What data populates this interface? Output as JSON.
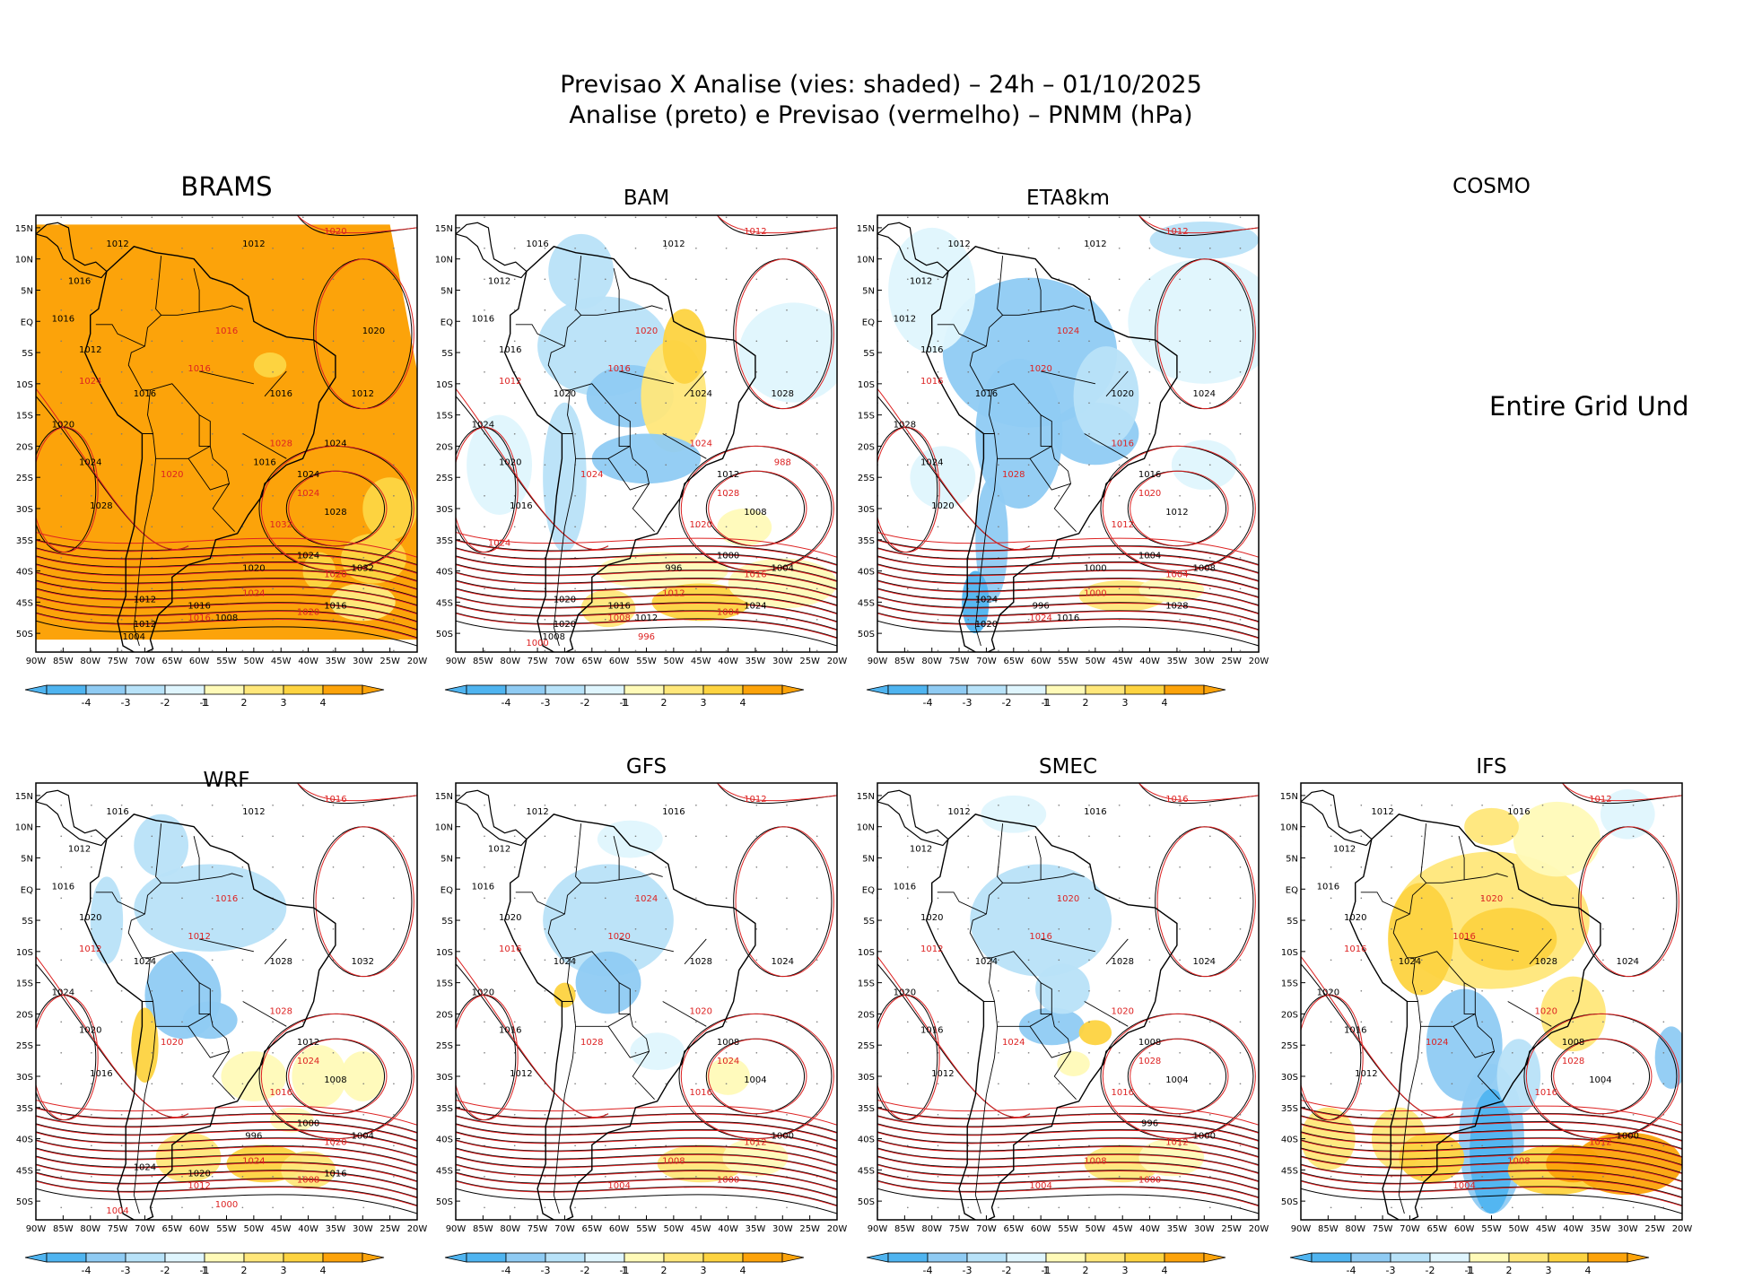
{
  "title": {
    "line1": "Previsao X Analise (vies: shaded) – 24h – 01/10/2025",
    "line2": "Analise (preto) e Previsao (vermelho) – PNMM (hPa)"
  },
  "colors": {
    "neg4": "#4fb4f0",
    "neg3": "#8fcbf3",
    "neg2": "#b8e2f8",
    "neg1": "#dff5fd",
    "pos1": "#fffab8",
    "pos2": "#ffe77a",
    "pos3": "#fdd340",
    "pos4": "#fca30a",
    "analysis_line": "#000000",
    "forecast_line": "#dd2222",
    "coast": "#000000"
  },
  "chart_data": [
    {
      "model": "BRAMS",
      "type": "heatmap",
      "dominant_bias": "pos4",
      "analysis_labels": [
        "1012",
        "1012",
        "1016",
        "1016",
        "1012",
        "1016",
        "1016",
        "1012",
        "1020",
        "1024",
        "1028",
        "1024",
        "1028",
        "1032",
        "1024",
        "1020",
        "1016",
        "1012",
        "1016",
        "1012",
        "1008",
        "1004",
        "1016",
        "1024",
        "1020"
      ],
      "forecast_labels": [
        "1020",
        "1024",
        "1016",
        "1016",
        "1020",
        "1024",
        "1028",
        "1032",
        "1020",
        "1024",
        "1016",
        "1020"
      ],
      "lon_ticks": [
        "90W",
        "85W",
        "80W",
        "75W",
        "70W",
        "65W",
        "60W",
        "55W",
        "50W",
        "45W",
        "40W",
        "35W",
        "30W",
        "25W",
        "20W"
      ],
      "lat_ticks": [
        "15N",
        "10N",
        "5N",
        "EQ",
        "5S",
        "10S",
        "15S",
        "20S",
        "25S",
        "30S",
        "35S",
        "40S",
        "45S",
        "50S"
      ],
      "colorbar_ticks": [
        "-4",
        "-3",
        "-2",
        "-1",
        "1",
        "2",
        "3",
        "4"
      ]
    },
    {
      "model": "BAM",
      "type": "heatmap",
      "dominant_bias": "mixed",
      "analysis_labels": [
        "1016",
        "1012",
        "1012",
        "1016",
        "1016",
        "1020",
        "1024",
        "1028",
        "1024",
        "1020",
        "1016",
        "1012",
        "1008",
        "1004",
        "1000",
        "996",
        "1016",
        "1020",
        "1024",
        "1020",
        "1012",
        "1008"
      ],
      "forecast_labels": [
        "1012",
        "1012",
        "1016",
        "1020",
        "1024",
        "1028",
        "1024",
        "1020",
        "1016",
        "1012",
        "1008",
        "1004",
        "1000",
        "996",
        "988",
        "1024"
      ],
      "lon_ticks": [
        "90W",
        "85W",
        "80W",
        "75W",
        "70W",
        "65W",
        "60W",
        "55W",
        "50W",
        "45W",
        "40W",
        "35W",
        "30W",
        "25W",
        "20W"
      ],
      "lat_ticks": [
        "15N",
        "10N",
        "5N",
        "EQ",
        "5S",
        "10S",
        "15S",
        "20S",
        "25S",
        "30S",
        "35S",
        "40S",
        "45S",
        "50S"
      ],
      "colorbar_ticks": [
        "-4",
        "-3",
        "-2",
        "-1",
        "1",
        "2",
        "3",
        "4"
      ]
    },
    {
      "model": "ETA8km",
      "type": "heatmap",
      "dominant_bias": "neg",
      "analysis_labels": [
        "1012",
        "1012",
        "1012",
        "1012",
        "1016",
        "1016",
        "1020",
        "1024",
        "1028",
        "1024",
        "1020",
        "1016",
        "1012",
        "1008",
        "1004",
        "1000",
        "996",
        "1024",
        "1028",
        "1020",
        "1016"
      ],
      "forecast_labels": [
        "1012",
        "1016",
        "1020",
        "1024",
        "1028",
        "1020",
        "1016",
        "1012",
        "1004",
        "1000",
        "1024"
      ],
      "lon_ticks": [
        "90W",
        "85W",
        "80W",
        "75W",
        "70W",
        "65W",
        "60W",
        "55W",
        "50W",
        "45W",
        "40W",
        "35W",
        "30W",
        "25W",
        "20W"
      ],
      "lat_ticks": [
        "15N",
        "10N",
        "5N",
        "EQ",
        "5S",
        "10S",
        "15S",
        "20S",
        "25S",
        "30S",
        "35S",
        "40S",
        "45S",
        "50S"
      ],
      "colorbar_ticks": [
        "-4",
        "-3",
        "-2",
        "-1",
        "1",
        "2",
        "3",
        "4"
      ]
    },
    {
      "model": "COSMO",
      "type": "heatmap",
      "message": "Entire Grid Und"
    },
    {
      "model": "WRF",
      "type": "heatmap",
      "dominant_bias": "mixed",
      "analysis_labels": [
        "1016",
        "1012",
        "1012",
        "1016",
        "1020",
        "1024",
        "1028",
        "1032",
        "1024",
        "1020",
        "1016",
        "1012",
        "1008",
        "1004",
        "1000",
        "996",
        "1020",
        "1024",
        "1016"
      ],
      "forecast_labels": [
        "1016",
        "1012",
        "1012",
        "1016",
        "1020",
        "1024",
        "1028",
        "1016",
        "1020",
        "1024",
        "1012",
        "1008",
        "1004",
        "1000"
      ],
      "lon_ticks": [
        "90W",
        "85W",
        "80W",
        "75W",
        "70W",
        "65W",
        "60W",
        "55W",
        "50W",
        "45W",
        "40W",
        "35W",
        "30W",
        "25W",
        "20W"
      ],
      "lat_ticks": [
        "15N",
        "10N",
        "5N",
        "EQ",
        "5S",
        "10S",
        "15S",
        "20S",
        "25S",
        "30S",
        "35S",
        "40S",
        "45S",
        "50S"
      ],
      "colorbar_ticks": [
        "-4",
        "-3",
        "-2",
        "-1",
        "1",
        "2",
        "3",
        "4"
      ]
    },
    {
      "model": "GFS",
      "type": "heatmap",
      "dominant_bias": "mixed",
      "analysis_labels": [
        "1012",
        "1016",
        "1012",
        "1016",
        "1020",
        "1024",
        "1028",
        "1024",
        "1020",
        "1016",
        "1012",
        "1008",
        "1004",
        "1000"
      ],
      "forecast_labels": [
        "1012",
        "1016",
        "1020",
        "1024",
        "1028",
        "1024",
        "1020",
        "1016",
        "1012",
        "1008",
        "1004",
        "1000"
      ],
      "lon_ticks": [
        "90W",
        "85W",
        "80W",
        "75W",
        "70W",
        "65W",
        "60W",
        "55W",
        "50W",
        "45W",
        "40W",
        "35W",
        "30W",
        "25W",
        "20W"
      ],
      "lat_ticks": [
        "15N",
        "10N",
        "5N",
        "EQ",
        "5S",
        "10S",
        "15S",
        "20S",
        "25S",
        "30S",
        "35S",
        "40S",
        "45S",
        "50S"
      ],
      "colorbar_ticks": [
        "-4",
        "-3",
        "-2",
        "-1",
        "1",
        "2",
        "3",
        "4"
      ]
    },
    {
      "model": "SMEC",
      "type": "heatmap",
      "dominant_bias": "mixed",
      "analysis_labels": [
        "1012",
        "1016",
        "1012",
        "1016",
        "1020",
        "1024",
        "1028",
        "1024",
        "1020",
        "1016",
        "1012",
        "1008",
        "1004",
        "1000",
        "996"
      ],
      "forecast_labels": [
        "1016",
        "1012",
        "1016",
        "1020",
        "1024",
        "1028",
        "1020",
        "1016",
        "1012",
        "1008",
        "1004",
        "1000"
      ],
      "lon_ticks": [
        "90W",
        "85W",
        "80W",
        "75W",
        "70W",
        "65W",
        "60W",
        "55W",
        "50W",
        "45W",
        "40W",
        "35W",
        "30W",
        "25W",
        "20W"
      ],
      "lat_ticks": [
        "15N",
        "10N",
        "5N",
        "EQ",
        "5S",
        "10S",
        "15S",
        "20S",
        "25S",
        "30S",
        "35S",
        "40S",
        "45S",
        "50S"
      ],
      "colorbar_ticks": [
        "-4",
        "-3",
        "-2",
        "-1",
        "1",
        "2",
        "3",
        "4"
      ]
    },
    {
      "model": "IFS",
      "type": "heatmap",
      "dominant_bias": "pos",
      "analysis_labels": [
        "1012",
        "1016",
        "1012",
        "1016",
        "1020",
        "1024",
        "1028",
        "1024",
        "1020",
        "1016",
        "1012",
        "1008",
        "1004",
        "1000"
      ],
      "forecast_labels": [
        "1012",
        "1016",
        "1016",
        "1020",
        "1024",
        "1028",
        "1020",
        "1016",
        "1012",
        "1008",
        "1004"
      ],
      "lon_ticks": [
        "90W",
        "85W",
        "80W",
        "75W",
        "70W",
        "65W",
        "60W",
        "55W",
        "50W",
        "45W",
        "40W",
        "35W",
        "30W",
        "25W",
        "20W"
      ],
      "lat_ticks": [
        "15N",
        "10N",
        "5N",
        "EQ",
        "5S",
        "10S",
        "15S",
        "20S",
        "25S",
        "30S",
        "35S",
        "40S",
        "45S",
        "50S"
      ],
      "colorbar_ticks": [
        "-4",
        "-3",
        "-2",
        "-1",
        "1",
        "2",
        "3",
        "4"
      ]
    }
  ]
}
